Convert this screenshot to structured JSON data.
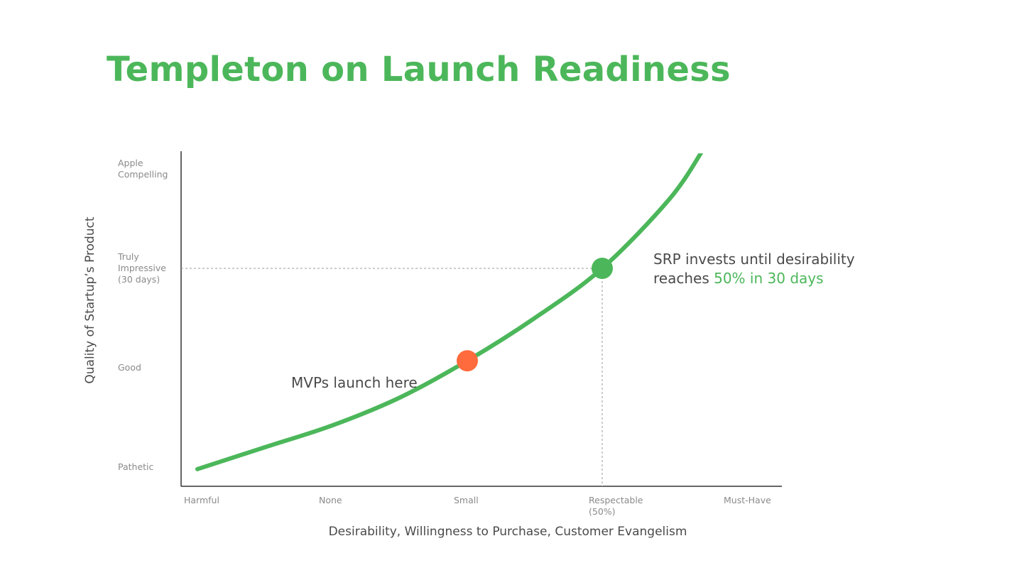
{
  "title": "Templeton on Launch Readiness",
  "colors": {
    "accent": "#4cb75a",
    "marker_mvp": "#ff6b3d",
    "marker_srp": "#4cb75a",
    "axis": "#333333",
    "text": "#4a4a4a",
    "tick": "#8a8a8a"
  },
  "chart_data": {
    "type": "line",
    "title": "Templeton on Launch Readiness",
    "xlabel": "Desirability, Willingness to Purchase, Customer Evangelism",
    "ylabel": "Quality of Startup’s Product",
    "x_ticks": [
      {
        "label": "Harmful",
        "value": 0
      },
      {
        "label": "None",
        "value": 1
      },
      {
        "label": "Small",
        "value": 2
      },
      {
        "label": "Respectable\n(50%)",
        "value": 3
      },
      {
        "label": "Must-Have",
        "value": 4
      }
    ],
    "y_ticks": [
      {
        "label": "Pathetic",
        "value": 0
      },
      {
        "label": "Good",
        "value": 1
      },
      {
        "label": "Truly\nImpressive\n(30 days)",
        "value": 2
      },
      {
        "label": "Apple\nCompelling",
        "value": 3
      }
    ],
    "xlim": [
      -0.1,
      4.2
    ],
    "ylim": [
      -0.2,
      3.2
    ],
    "series": [
      {
        "x": [
          0.0,
          0.5,
          1.0,
          1.5,
          2.0,
          2.5,
          3.0,
          3.5,
          3.75
        ],
        "y": [
          -0.02,
          0.2,
          0.42,
          0.7,
          1.07,
          1.5,
          2.0,
          2.7,
          3.2
        ]
      }
    ],
    "points": [
      {
        "name": "mvp",
        "x": 2.0,
        "y": 1.07
      },
      {
        "name": "srp",
        "x": 3.0,
        "y": 2.0
      }
    ],
    "annotations": [
      {
        "name": "mvp",
        "text": "MVPs launch here"
      },
      {
        "name": "srp",
        "line1": "SRP invests until desirability",
        "line2_prefix": "reaches ",
        "line2_highlight": "50% in 30 days"
      }
    ],
    "grid": false,
    "reference_lines": "dashed lines from the SRP point to both axes"
  }
}
